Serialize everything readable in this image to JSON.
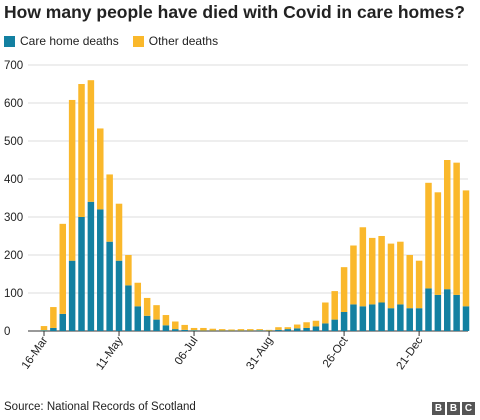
{
  "header": {
    "title": "How many people have died with Covid in care homes?"
  },
  "legend": [
    {
      "label": "Care home deaths",
      "color": "#1380a1"
    },
    {
      "label": "Other deaths",
      "color": "#fab82b"
    }
  ],
  "footer": {
    "source": "Source: National Records of Scotland",
    "logo": [
      "B",
      "B",
      "C"
    ]
  },
  "chart_data": {
    "type": "bar",
    "stacked": true,
    "title": "How many people have died with Covid in care homes?",
    "xlabel": "",
    "ylabel": "",
    "ylim": [
      0,
      700
    ],
    "yticks": [
      0,
      100,
      200,
      300,
      400,
      500,
      600,
      700
    ],
    "grid": true,
    "legend_position": "top-left",
    "x_tick_labels": [
      {
        "label": "16-Mar",
        "index": 0
      },
      {
        "label": "11-May",
        "index": 8
      },
      {
        "label": "06-Jul",
        "index": 16
      },
      {
        "label": "31-Aug",
        "index": 24
      },
      {
        "label": "26-Oct",
        "index": 32
      },
      {
        "label": "21-Dec",
        "index": 40
      }
    ],
    "series": [
      {
        "name": "Care home deaths",
        "color": "#1380a1",
        "values": [
          2,
          8,
          45,
          185,
          300,
          340,
          320,
          235,
          185,
          120,
          65,
          40,
          30,
          15,
          5,
          3,
          2,
          1,
          1,
          1,
          1,
          1,
          1,
          2,
          1,
          3,
          5,
          7,
          8,
          12,
          20,
          30,
          50,
          70,
          65,
          70,
          75,
          60,
          70,
          60,
          60,
          112,
          95,
          110,
          95,
          65
        ]
      },
      {
        "name": "Other deaths",
        "color": "#fab82b",
        "values": [
          11,
          55,
          237,
          423,
          350,
          320,
          213,
          177,
          150,
          80,
          62,
          47,
          38,
          27,
          20,
          13,
          6,
          7,
          5,
          4,
          3,
          4,
          4,
          3,
          2,
          7,
          5,
          10,
          15,
          15,
          55,
          75,
          118,
          155,
          208,
          175,
          175,
          170,
          165,
          140,
          125,
          278,
          270,
          340,
          348,
          305
        ]
      }
    ]
  }
}
